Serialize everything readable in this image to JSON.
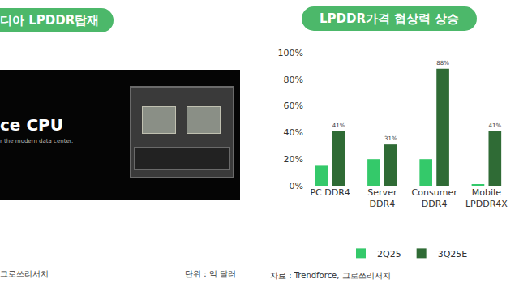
{
  "left_panel": {
    "header": "디아 LPDDR탑재",
    "image_title": "ce CPU",
    "image_subtitle": "r the modern data center.",
    "source": "그로쓰리서치",
    "unit": "단위 : 억 달러"
  },
  "chart_data": {
    "type": "bar",
    "title": "LPDDR가격 협상력 상승",
    "categories": [
      "PC DDR4",
      "Server\nDDR4",
      "Consumer\nDDR4",
      "Mobile\nLPDDR4X"
    ],
    "series": [
      {
        "name": "2Q25",
        "color": "#34c96a",
        "values": [
          15,
          20,
          20,
          1
        ]
      },
      {
        "name": "3Q25E",
        "color": "#2f6b35",
        "values": [
          41,
          31,
          88,
          41
        ],
        "data_labels": true,
        "value_labels": [
          "41%",
          "31%",
          "88%",
          "41%"
        ]
      }
    ],
    "ylim": [
      0,
      100
    ],
    "yticks": [
      {
        "value": 0,
        "label": "0%"
      },
      {
        "value": 20,
        "label": "20%"
      },
      {
        "value": 40,
        "label": "40%"
      },
      {
        "value": 60,
        "label": "60%"
      },
      {
        "value": 80,
        "label": "80%"
      },
      {
        "value": 100,
        "label": "100%"
      }
    ],
    "grid": false,
    "legend": "bottom",
    "source": "자료 : Trendforce, 그로쓰리서치"
  }
}
